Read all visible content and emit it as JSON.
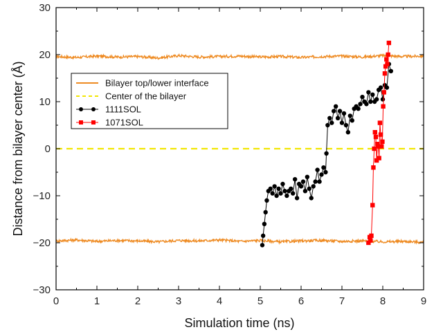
{
  "chart_data": {
    "type": "line",
    "title": "",
    "xlabel": "Simulation time (ns)",
    "ylabel": "Distance from bilayer center (Å)",
    "xlim": [
      0,
      9
    ],
    "ylim": [
      -30,
      30
    ],
    "x_ticks": [
      "0",
      "1",
      "2",
      "3",
      "4",
      "5",
      "6",
      "7",
      "8",
      "9"
    ],
    "y_ticks": [
      "-30",
      "-20",
      "-10",
      "0",
      "10",
      "20",
      "30"
    ],
    "grid": false,
    "legend_position": "upper-left",
    "series": [
      {
        "name": "Bilayer top/lower interface",
        "style": "line",
        "color": "#ee8a21",
        "x": [
          0,
          0.5,
          1,
          1.5,
          2,
          2.5,
          3,
          3.5,
          4,
          4.5,
          5,
          5.5,
          6,
          6.5,
          7,
          7.5,
          8,
          8.5,
          9
        ],
        "y": [
          19.6,
          19.4,
          19.7,
          19.5,
          19.6,
          19.3,
          19.8,
          19.5,
          19.6,
          19.7,
          19.5,
          19.6,
          19.4,
          19.6,
          19.7,
          19.5,
          19.8,
          19.6,
          19.7
        ]
      },
      {
        "name": "",
        "style": "line",
        "color": "#ee8a21",
        "x": [
          0,
          0.5,
          1,
          1.5,
          2,
          2.5,
          3,
          3.5,
          4,
          4.5,
          5,
          5.5,
          6,
          6.5,
          7,
          7.5,
          8,
          8.5,
          9
        ],
        "y": [
          -19.6,
          -19.4,
          -19.7,
          -19.5,
          -19.6,
          -19.8,
          -19.5,
          -19.6,
          -19.4,
          -19.7,
          -19.5,
          -19.8,
          -19.6,
          -19.5,
          -19.7,
          -19.6,
          -19.8,
          -19.7,
          -19.9
        ]
      },
      {
        "name": "Center of the bilayer",
        "style": "dashed",
        "color": "#f2e600",
        "x": [
          0,
          9
        ],
        "y": [
          0,
          0
        ]
      },
      {
        "name": "1111SOL",
        "style": "line-marker",
        "marker": "circle",
        "color": "#000000",
        "x": [
          5.05,
          5.07,
          5.1,
          5.13,
          5.16,
          5.2,
          5.25,
          5.3,
          5.35,
          5.4,
          5.45,
          5.5,
          5.55,
          5.6,
          5.65,
          5.7,
          5.75,
          5.8,
          5.85,
          5.9,
          5.95,
          6.0,
          6.05,
          6.1,
          6.15,
          6.2,
          6.25,
          6.3,
          6.35,
          6.4,
          6.45,
          6.5,
          6.55,
          6.6,
          6.62,
          6.65,
          6.7,
          6.75,
          6.8,
          6.85,
          6.9,
          6.95,
          7.0,
          7.05,
          7.1,
          7.15,
          7.2,
          7.25,
          7.3,
          7.35,
          7.4,
          7.45,
          7.5,
          7.55,
          7.6,
          7.65,
          7.7,
          7.75,
          7.8,
          7.85,
          7.9,
          7.95,
          8.0,
          8.05,
          8.1,
          8.15,
          8.2
        ],
        "y": [
          -20.5,
          -18.5,
          -16,
          -13.5,
          -11,
          -9,
          -8.5,
          -9.5,
          -8,
          -10,
          -8.5,
          -9.5,
          -7.5,
          -9,
          -10,
          -9,
          -8.5,
          -9.5,
          -6.5,
          -10.5,
          -7.5,
          -8,
          -7,
          -9,
          -6,
          -8.5,
          -10.5,
          -8,
          -7,
          -4.5,
          -7,
          -5.5,
          -4,
          -5,
          -1,
          5,
          6.5,
          5.5,
          8,
          9,
          6.5,
          8,
          5.5,
          7.5,
          5,
          3.5,
          7,
          6,
          8.5,
          9,
          8.5,
          9.5,
          11,
          10,
          9.5,
          12,
          10,
          11.5,
          10,
          10.5,
          12.5,
          13,
          10.5,
          13.5,
          13,
          18,
          16.5
        ]
      },
      {
        "name": "1071SOL",
        "style": "line-marker",
        "marker": "square",
        "color": "#ff0000",
        "x": [
          7.65,
          7.68,
          7.7,
          7.72,
          7.75,
          7.77,
          7.79,
          7.81,
          7.83,
          7.85,
          7.87,
          7.89,
          7.91,
          7.93,
          7.95,
          7.97,
          7.99,
          8.01,
          8.03,
          8.05,
          8.07,
          8.09,
          8.11,
          8.13,
          8.15
        ],
        "y": [
          -20,
          -18.8,
          -19.5,
          -18.5,
          -12,
          -4,
          0,
          3.5,
          2.5,
          -2.5,
          1,
          0.5,
          -2,
          5.5,
          3,
          0.5,
          1.5,
          9,
          12,
          16,
          17.5,
          19,
          18,
          20,
          22.5
        ]
      }
    ]
  },
  "legend": {
    "items": [
      {
        "label": "Bilayer top/lower interface",
        "color": "#ee8a21",
        "style": "line"
      },
      {
        "label": "Center of the bilayer",
        "color": "#f2e600",
        "style": "dashed"
      },
      {
        "label": "1111SOL",
        "color": "#000000",
        "style": "line-marker",
        "marker": "circle"
      },
      {
        "label": "1071SOL",
        "color": "#ff0000",
        "style": "line-marker",
        "marker": "square"
      }
    ]
  }
}
